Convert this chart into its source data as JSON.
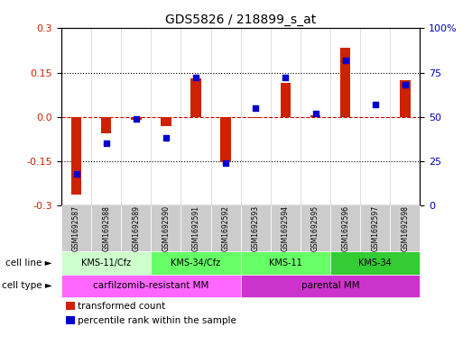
{
  "title": "GDS5826 / 218899_s_at",
  "samples": [
    "GSM1692587",
    "GSM1692588",
    "GSM1692589",
    "GSM1692590",
    "GSM1692591",
    "GSM1692592",
    "GSM1692593",
    "GSM1692594",
    "GSM1692595",
    "GSM1692596",
    "GSM1692597",
    "GSM1692598"
  ],
  "transformed_count": [
    -0.265,
    -0.055,
    -0.01,
    -0.03,
    0.13,
    -0.155,
    -0.005,
    0.115,
    0.005,
    0.235,
    0.0,
    0.125
  ],
  "percentile_rank": [
    18,
    35,
    49,
    38,
    72,
    24,
    55,
    72,
    52,
    82,
    57,
    68
  ],
  "ylim_left": [
    -0.3,
    0.3
  ],
  "ylim_right": [
    0,
    100
  ],
  "yticks_left": [
    -0.3,
    -0.15,
    0.0,
    0.15,
    0.3
  ],
  "yticks_right": [
    0,
    25,
    50,
    75,
    100
  ],
  "bar_color": "#cc2200",
  "dot_color": "#0000cc",
  "zero_line_color": "#cc0000",
  "cell_line_groups": [
    {
      "label": "KMS-11/Cfz",
      "start": 0,
      "end": 3,
      "color": "#ccffcc"
    },
    {
      "label": "KMS-34/Cfz",
      "start": 3,
      "end": 6,
      "color": "#66ff66"
    },
    {
      "label": "KMS-11",
      "start": 6,
      "end": 9,
      "color": "#66ff66"
    },
    {
      "label": "KMS-34",
      "start": 9,
      "end": 12,
      "color": "#33cc33"
    }
  ],
  "cell_type_groups": [
    {
      "label": "carfilzomib-resistant MM",
      "start": 0,
      "end": 6,
      "color": "#ff66ff"
    },
    {
      "label": "parental MM",
      "start": 6,
      "end": 12,
      "color": "#cc33cc"
    }
  ],
  "cell_line_row_label": "cell line",
  "cell_type_row_label": "cell type",
  "legend_items": [
    {
      "color": "#cc2200",
      "label": "transformed count"
    },
    {
      "color": "#0000cc",
      "label": "percentile rank within the sample"
    }
  ],
  "bg_color": "#ffffff",
  "tick_label_color_left": "#cc2200",
  "tick_label_color_right": "#0000bb"
}
